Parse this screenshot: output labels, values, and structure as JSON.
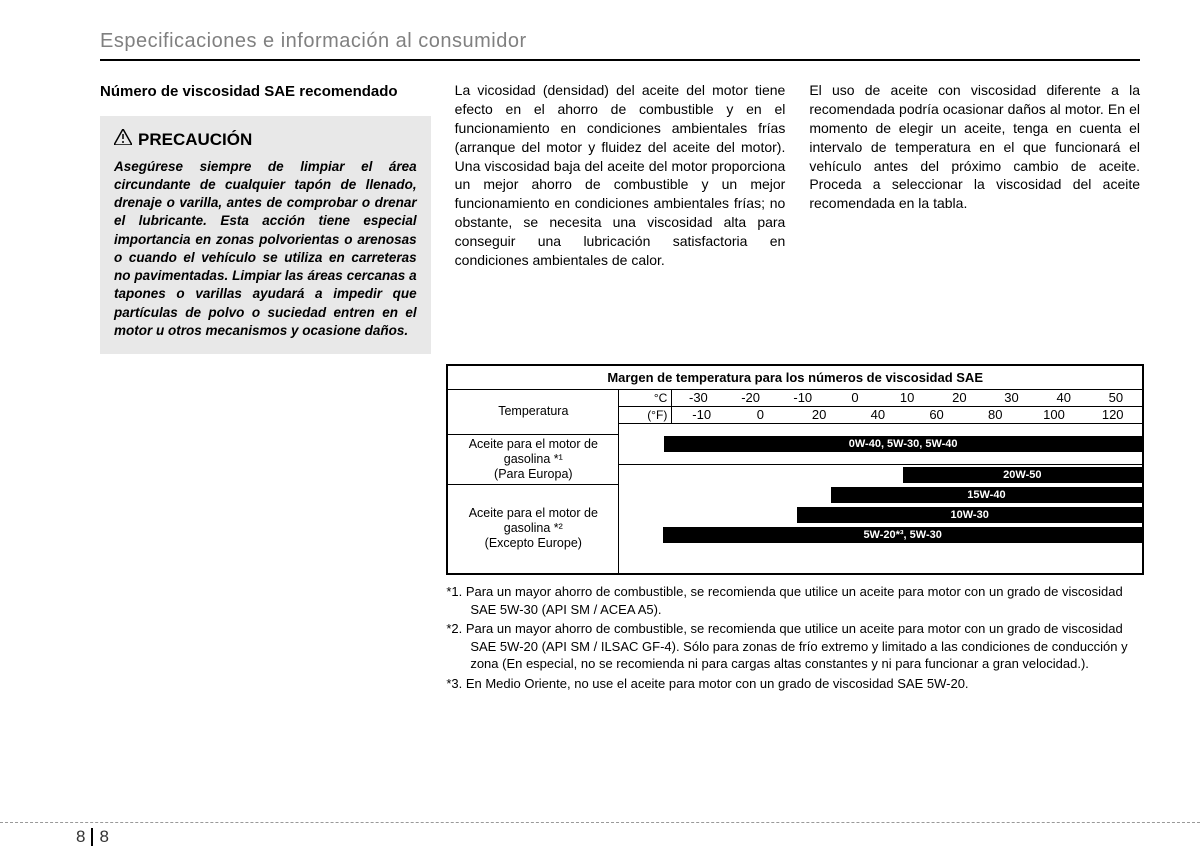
{
  "header": {
    "section_title": "Especificaciones e información al consumidor"
  },
  "col1": {
    "subheading": "Número de viscosidad SAE recomendado",
    "caution_label": "PRECAUCIÓN",
    "caution_text": "Asegúrese siempre de limpiar el área circundante de cualquier tapón de llenado, drenaje o varilla, antes de comprobar o drenar el lubricante. Esta acción tiene especial importancia en zonas polvorientas o arenosas o cuando el vehículo se utiliza en carreteras no pavimentadas. Limpiar las áreas cercanas a tapones o varillas ayudará a impedir que partículas de polvo o suciedad entren en el motor u otros mecanismos y ocasione daños."
  },
  "col2": {
    "text": "La vicosidad (densidad) del aceite del motor tiene efecto en el ahorro de combustible y en el funcionamiento en condiciones ambientales frías (arranque del motor y fluidez del aceite del motor). Una viscosidad baja del aceite del motor proporciona un mejor ahorro de combustible y un mejor funcionamiento en condiciones ambientales frías; no obstante, se necesita una viscosidad alta para conseguir una lubricación satisfactoria en condiciones ambientales de calor."
  },
  "col3": {
    "text": "El uso de aceite con viscosidad diferente a la recomendada podría ocasionar daños al motor. En el momento de elegir un aceite, tenga en cuenta el intervalo de temperatura en el que funcionará el vehículo antes del próximo cambio de aceite. Proceda a seleccionar la viscosidad del aceite recomendada en la tabla."
  },
  "chart": {
    "title": "Margen de temperatura para los números de viscosidad SAE",
    "temp_label": "Temperatura",
    "unit_c": "°C",
    "unit_f": "(°F)",
    "ticks_c": [
      "-30",
      "-20",
      "-10",
      "0",
      "10",
      "20",
      "30",
      "40",
      "50"
    ],
    "ticks_f": [
      "-10",
      "0",
      "20",
      "40",
      "60",
      "80",
      "100",
      "120"
    ],
    "row1_label": "Aceite para el motor de gasolina *¹\n(Para Europa)",
    "row2_label": "Aceite para el motor de gasolina *²\n(Excepto Europe)",
    "bars_row1": [
      {
        "label": "0W-40, 5W-30, 5W-40",
        "left_pct": 0,
        "width_pct": 100
      }
    ],
    "bars_row2": [
      {
        "label": "20W-50",
        "left_pct": 50,
        "width_pct": 50
      },
      {
        "label": "15W-40",
        "left_pct": 35,
        "width_pct": 65
      },
      {
        "label": "10W-30",
        "left_pct": 28,
        "width_pct": 72
      },
      {
        "label": "5W-20*³, 5W-30",
        "left_pct": 0,
        "width_pct": 100
      }
    ],
    "bar_bg": "#000000",
    "bar_fg": "#ffffff"
  },
  "footnotes": {
    "n1": "*1. Para un mayor ahorro de combustible, se recomienda que utilice un aceite para motor con un grado de viscosidad SAE 5W-30 (API SM / ACEA A5).",
    "n2": "*2. Para un mayor ahorro de combustible, se recomienda que utilice un aceite para motor con un grado de viscosidad SAE 5W-20 (API SM / ILSAC GF-4). Sólo para zonas de frío extremo y limitado a las condiciones de conducción y zona (En especial, no se recomienda ni para cargas altas constantes y ni para funcionar a gran velocidad.).",
    "n3": "*3. En Medio Oriente, no use el aceite para motor con un grado de viscosidad SAE 5W-20."
  },
  "footer": {
    "page_left": "8",
    "page_right": "8"
  }
}
